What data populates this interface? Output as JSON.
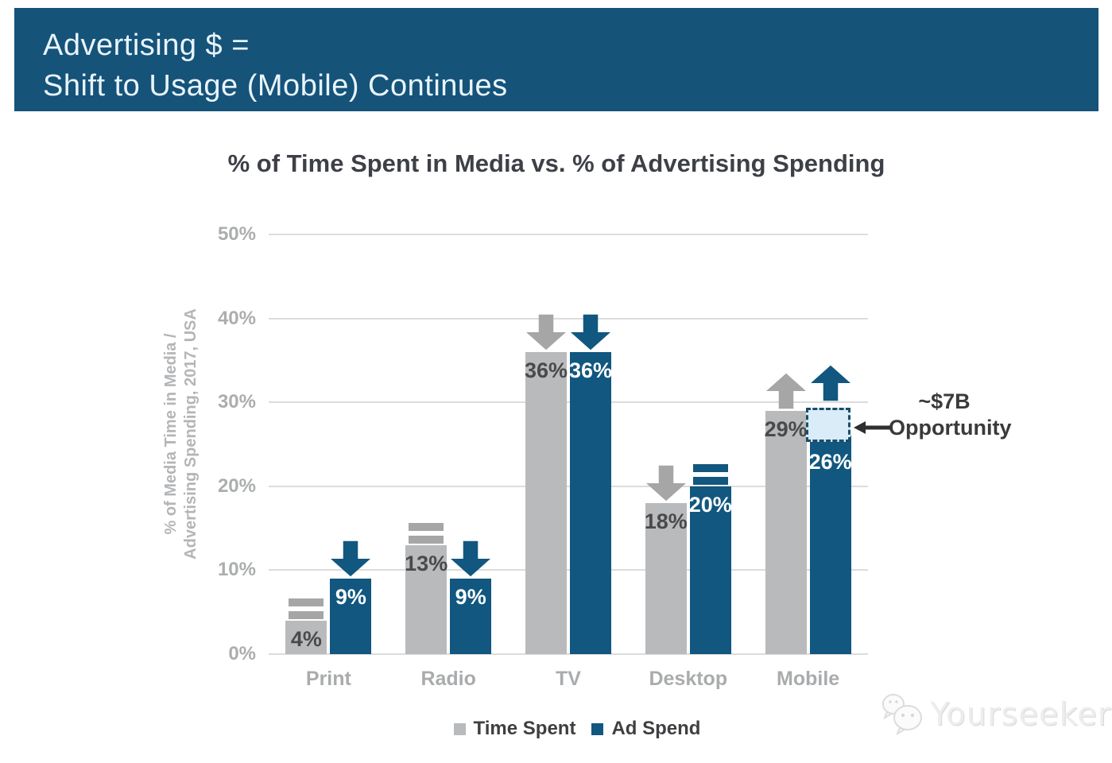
{
  "header": {
    "title_line1": "Advertising $ =",
    "title_line2": "Shift to Usage (Mobile) Continues",
    "background_color": "#155379",
    "text_color": "#e9f4fb"
  },
  "chart_data": {
    "type": "bar",
    "title": "% of Time Spent in Media vs. % of Advertising Spending",
    "ylabel": "% of Media Time in Media / Advertising Spending, 2017, USA",
    "ylabel_line1": "% of Media Time in Media /",
    "ylabel_line2": "Advertising Spending, 2017, USA",
    "xlabel": "",
    "categories": [
      "Print",
      "Radio",
      "TV",
      "Desktop",
      "Mobile"
    ],
    "series": [
      {
        "name": "Time Spent",
        "color": "#b9babc",
        "arrow_color": "#a6a6a6",
        "label_color": "#4a4a4c",
        "values": [
          4,
          13,
          36,
          18,
          29
        ],
        "trend": [
          "flat",
          "flat",
          "down",
          "down",
          "up"
        ]
      },
      {
        "name": "Ad Spend",
        "color": "#11577f",
        "arrow_color": "#11577f",
        "label_color": "#ffffff",
        "values": [
          9,
          9,
          36,
          20,
          26
        ],
        "trend": [
          "down",
          "down",
          "down",
          "flat",
          "up"
        ]
      }
    ],
    "ylim": [
      0,
      50
    ],
    "ytick_step": 10,
    "ytick_suffix": "%",
    "grid": true,
    "gridline_color": "#dcdcdc",
    "axis_text_color": "#abadaf",
    "legend_position": "bottom",
    "annotation": {
      "line1": "~$7B",
      "line2": "Opportunity"
    },
    "opportunity_gap": {
      "category": "Mobile",
      "series": "Ad Spend",
      "from": 26,
      "to": 29,
      "fill": "#d9ecf8",
      "border": "#1b4d68"
    }
  },
  "watermark": {
    "text": "Yourseeker"
  }
}
